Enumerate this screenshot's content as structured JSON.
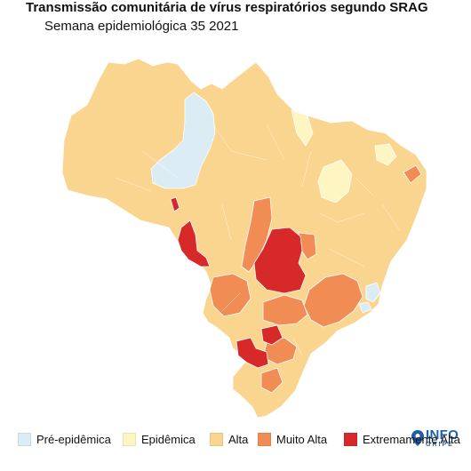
{
  "title": "Transmissão comunitária de vírus respiratórios segundo SRAG",
  "subtitle": "Semana epidemiológica 35 2021",
  "logo": {
    "icon": "map-pin-icon",
    "line1": "INFO",
    "line2": "GRIPE"
  },
  "colors": {
    "pre_epidemica": "#dcecf5",
    "epidemica": "#fdf6c3",
    "alta": "#f9d590",
    "muito_alta": "#f18c55",
    "extremamente_alta": "#d7292a"
  },
  "legend": [
    {
      "key": "pre_epidemica",
      "label": "Pré-epidêmica"
    },
    {
      "key": "epidemica",
      "label": "Epidêmica"
    },
    {
      "key": "alta",
      "label": "Alta"
    },
    {
      "key": "muito_alta",
      "label": "Muito Alta"
    },
    {
      "key": "extremamente_alta",
      "label": "Extremamente Alta"
    }
  ]
}
